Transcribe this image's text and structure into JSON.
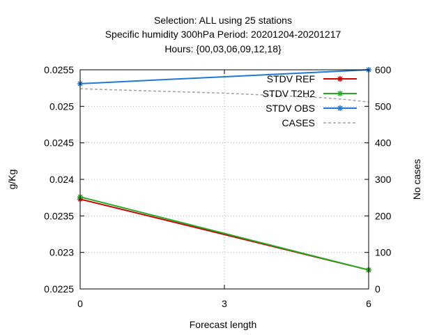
{
  "chart_data": {
    "type": "line",
    "title_lines": [
      "Selection: ALL using    25 stations",
      "Specific humidity 300hPa   Period: 20201204-20201217",
      "Hours: {00,03,06,09,12,18}"
    ],
    "xlabel": "Forecast length",
    "ylabel": "g/Kg",
    "y2label": "No cases",
    "x_ticks": [
      "0",
      "3",
      "6"
    ],
    "y_ticks": [
      "0.0225",
      "0.023",
      "0.0235",
      "0.024",
      "0.0245",
      "0.025",
      "0.0255"
    ],
    "y2_ticks": [
      "0",
      "100",
      "200",
      "300",
      "400",
      "500",
      "600"
    ],
    "xlim": [
      0,
      6
    ],
    "ylim": [
      0.0225,
      0.0255
    ],
    "y2lim": [
      0,
      600
    ],
    "grid": true,
    "legend_position": "top-right",
    "series": [
      {
        "name": "STDV REF",
        "axis": "y",
        "color": "#cc0000",
        "style": "solid-marker",
        "x": [
          0,
          6
        ],
        "values": [
          0.02373,
          0.02276
        ]
      },
      {
        "name": "STDV T2H2",
        "axis": "y",
        "color": "#22aa22",
        "style": "solid-marker",
        "x": [
          0,
          6
        ],
        "values": [
          0.02376,
          0.02276
        ]
      },
      {
        "name": "STDV OBS",
        "axis": "y",
        "color": "#1f78d4",
        "style": "solid-marker",
        "x": [
          0,
          6
        ],
        "values": [
          0.02531,
          0.0255
        ]
      },
      {
        "name": "CASES",
        "axis": "y2",
        "color": "#a0a0a0",
        "style": "dashed",
        "x": [
          0,
          0.5,
          1,
          1.5,
          2,
          2.5,
          3,
          3.5,
          4,
          4.5,
          5,
          5.5,
          6
        ],
        "values": [
          548,
          546,
          544,
          542,
          540,
          538,
          536,
          533,
          530,
          527,
          524,
          519,
          512
        ]
      }
    ]
  }
}
